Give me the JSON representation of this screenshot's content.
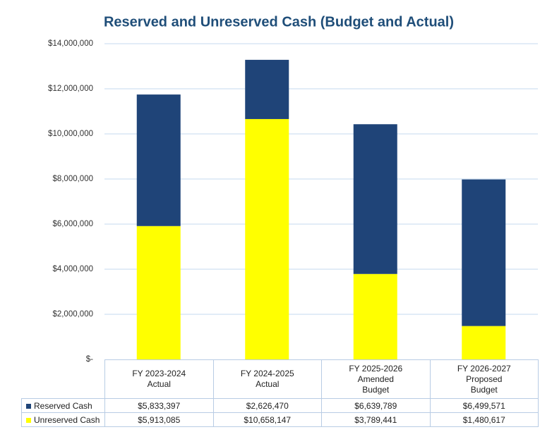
{
  "chart_data": {
    "type": "stacked_bar",
    "title": "Reserved and Unreserved Cash (Budget and Actual)",
    "categories": [
      "FY 2023-2024\nActual",
      "FY 2024-2025\nActual",
      "FY 2025-2026\nAmended\nBudget",
      "FY 2026-2027\nProposed\nBudget"
    ],
    "series": [
      {
        "name": "Reserved Cash",
        "color": "#1f4478",
        "values": [
          5833397,
          2626470,
          6639789,
          6499571
        ],
        "value_labels": [
          "$5,833,397",
          "$2,626,470",
          "$6,639,789",
          "$6,499,571"
        ]
      },
      {
        "name": "Unreserved Cash",
        "color": "#ffff00",
        "values": [
          5913085,
          10658147,
          3789441,
          1480617
        ],
        "value_labels": [
          "$5,913,085",
          "$10,658,147",
          "$3,789,441",
          "$1,480,617"
        ]
      }
    ],
    "stack_order": [
      "Unreserved Cash",
      "Reserved Cash"
    ],
    "ylim": [
      0,
      14000000
    ],
    "yticks": [
      {
        "value": 0,
        "label": "$-"
      },
      {
        "value": 2000000,
        "label": "$2,000,000"
      },
      {
        "value": 4000000,
        "label": "$4,000,000"
      },
      {
        "value": 6000000,
        "label": "$6,000,000"
      },
      {
        "value": 8000000,
        "label": "$8,000,000"
      },
      {
        "value": 10000000,
        "label": "$10,000,000"
      },
      {
        "value": 12000000,
        "label": "$12,000,000"
      },
      {
        "value": 14000000,
        "label": "$14,000,000"
      }
    ],
    "grid": true
  }
}
